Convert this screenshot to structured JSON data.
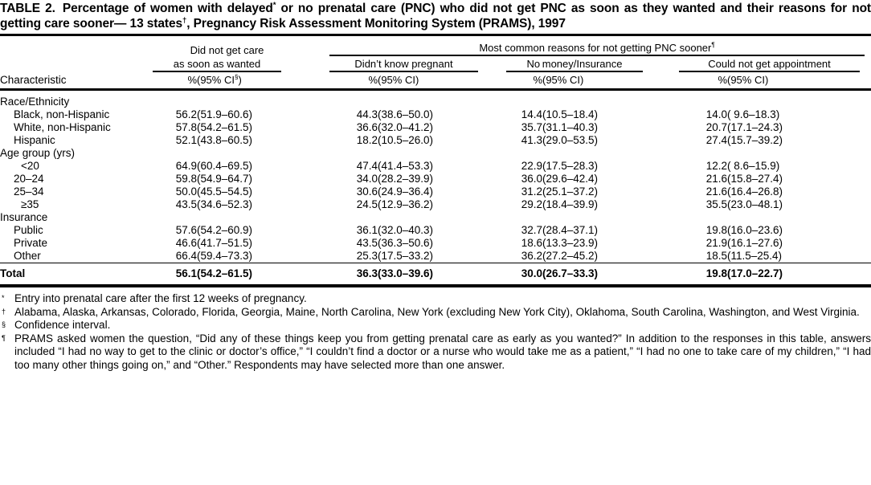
{
  "title": {
    "label": "TABLE 2.",
    "part1": "Percentage of women with delayed",
    "sup1": "*",
    "part2": " or no prenatal care (PNC) who did not get PNC as soon as they wanted and their reasons for not getting care sooner— 13 states",
    "sup2": "†",
    "part3": ", Pregnancy Risk Assessment Monitoring System (PRAMS), 1997"
  },
  "table": {
    "header": {
      "characteristic": "Characteristic",
      "group1_line1": "Did not get care",
      "group1_line2": "as soon as wanted",
      "spanner": "Most common reasons for not getting PNC sooner",
      "spanner_sup": "¶",
      "sub1": "Didn’t know pregnant",
      "sub2": "No money/Insurance",
      "sub3": "Could not get appointment",
      "pct": "%",
      "ci_first_prefix": "(95% CI",
      "ci_first_sup": "§",
      "ci_first_suffix": ")",
      "ci": "(95% CI)"
    },
    "sections": [
      {
        "label": "Race/Ethnicity",
        "rows": [
          {
            "label": "Black, non-Hispanic",
            "indent": 1,
            "values": [
              "56.2",
              "(51.9–60.6)",
              "44.3",
              "(38.6–50.0)",
              "14.4",
              "(10.5–18.4)",
              "14.0",
              "( 9.6–18.3)"
            ]
          },
          {
            "label": "White, non-Hispanic",
            "indent": 1,
            "values": [
              "57.8",
              "(54.2–61.5)",
              "36.6",
              "(32.0–41.2)",
              "35.7",
              "(31.1–40.3)",
              "20.7",
              "(17.1–24.3)"
            ]
          },
          {
            "label": "Hispanic",
            "indent": 1,
            "values": [
              "52.1",
              "(43.8–60.5)",
              "18.2",
              "(10.5–26.0)",
              "41.3",
              "(29.0–53.5)",
              "27.4",
              "(15.7–39.2)"
            ]
          }
        ]
      },
      {
        "label": "Age group (yrs)",
        "rows": [
          {
            "label": "<20",
            "indent": 2,
            "values": [
              "64.9",
              "(60.4–69.5)",
              "47.4",
              "(41.4–53.3)",
              "22.9",
              "(17.5–28.3)",
              "12.2",
              "( 8.6–15.9)"
            ]
          },
          {
            "label": "20–24",
            "indent": 1,
            "values": [
              "59.8",
              "(54.9–64.7)",
              "34.0",
              "(28.2–39.9)",
              "36.0",
              "(29.6–42.4)",
              "21.6",
              "(15.8–27.4)"
            ]
          },
          {
            "label": "25–34",
            "indent": 1,
            "values": [
              "50.0",
              "(45.5–54.5)",
              "30.6",
              "(24.9–36.4)",
              "31.2",
              "(25.1–37.2)",
              "21.6",
              "(16.4–26.8)"
            ]
          },
          {
            "label": "≥35",
            "indent": 2,
            "values": [
              "43.5",
              "(34.6–52.3)",
              "24.5",
              "(12.9–36.2)",
              "29.2",
              "(18.4–39.9)",
              "35.5",
              "(23.0–48.1)"
            ]
          }
        ]
      },
      {
        "label": "Insurance",
        "rows": [
          {
            "label": "Public",
            "indent": 1,
            "values": [
              "57.6",
              "(54.2–60.9)",
              "36.1",
              "(32.0–40.3)",
              "32.7",
              "(28.4–37.1)",
              "19.8",
              "(16.0–23.6)"
            ]
          },
          {
            "label": "Private",
            "indent": 1,
            "values": [
              "46.6",
              "(41.7–51.5)",
              "43.5",
              "(36.3–50.6)",
              "18.6",
              "(13.3–23.9)",
              "21.9",
              "(16.1–27.6)"
            ]
          },
          {
            "label": "Other",
            "indent": 1,
            "values": [
              "66.4",
              "(59.4–73.3)",
              "25.3",
              "(17.5–33.2)",
              "36.2",
              "(27.2–45.2)",
              "18.5",
              "(11.5–25.4)"
            ]
          }
        ]
      }
    ],
    "total": {
      "label": "Total",
      "values": [
        "56.1",
        "(54.2–61.5)",
        "36.3",
        "(33.0–39.6)",
        "30.0",
        "(26.7–33.3)",
        "19.8",
        "(17.0–22.7)"
      ]
    }
  },
  "footnotes": [
    {
      "marker": "*",
      "text": "Entry into prenatal care after the first 12 weeks of pregnancy."
    },
    {
      "marker": "†",
      "text": "Alabama, Alaska, Arkansas, Colorado, Florida, Georgia, Maine, North Carolina, New York (excluding New York City), Oklahoma, South Carolina, Washington, and West Virginia."
    },
    {
      "marker": "§",
      "text": "Confidence interval."
    },
    {
      "marker": "¶",
      "text": "PRAMS asked women the question, “Did any of these things keep you from getting prenatal care as early as you wanted?” In addition to the responses in this table, answers included “I had no way to get to the clinic or doctor’s office,” “I couldn’t find a doctor or a nurse who would take me as a patient,” “I had no one to take care of my children,” “I had too many other things going on,” and “Other.” Respondents may have selected more than one answer."
    }
  ],
  "colors": {
    "text": "#000000",
    "background": "#ffffff"
  }
}
